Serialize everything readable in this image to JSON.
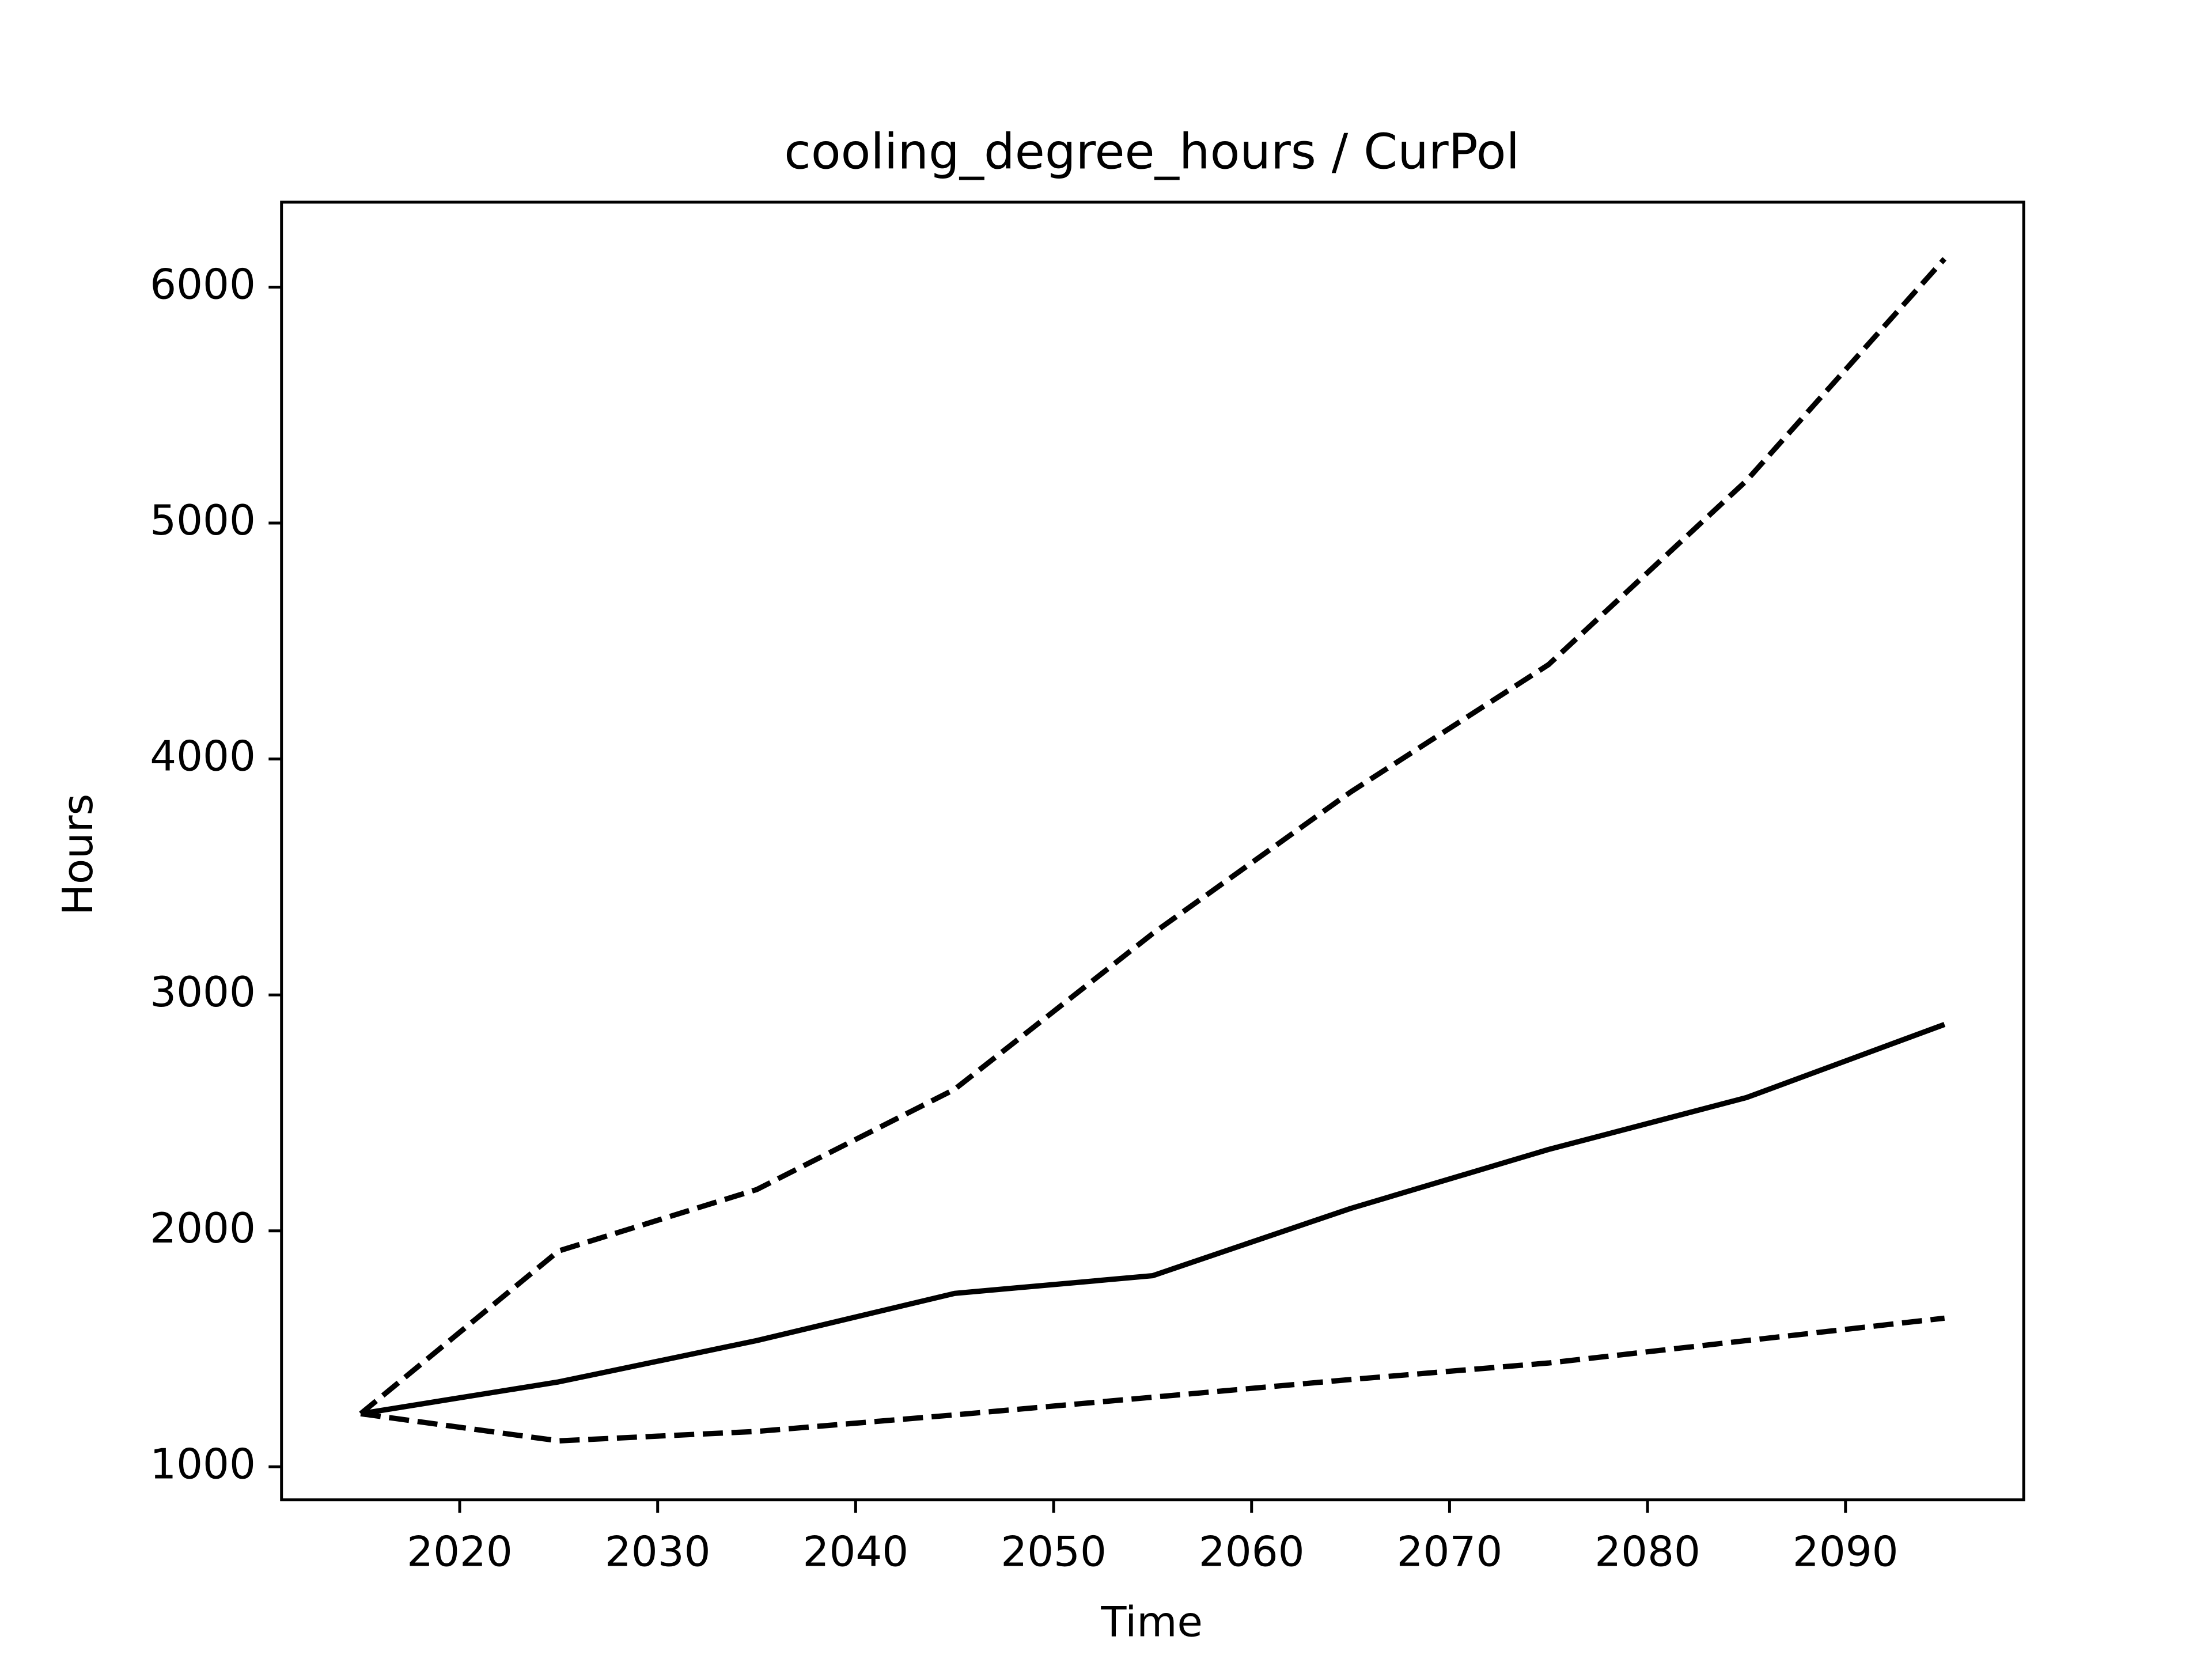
{
  "chart_data": {
    "type": "line",
    "title": "cooling_degree_hours / CurPol",
    "x_label": "Time",
    "y_label": "Hours",
    "x": [
      2015,
      2025,
      2035,
      2045,
      2055,
      2065,
      2075,
      2085,
      2095
    ],
    "series": [
      {
        "color": "#000000",
        "linestyle": "solid",
        "values": [
          1225,
          1360,
          1535,
          1735,
          1810,
          2095,
          2345,
          2565,
          2875
        ]
      },
      {
        "color": "#000000",
        "linestyle": "dashed",
        "values": [
          1225,
          1915,
          2175,
          2600,
          3260,
          3860,
          4400,
          5180,
          6120
        ]
      },
      {
        "color": "#000000",
        "linestyle": "dashed",
        "values": [
          1225,
          1110,
          1150,
          1220,
          1295,
          1370,
          1440,
          1535,
          1630
        ]
      }
    ],
    "xlim": [
      2011,
      2099
    ],
    "xticks": [
      2020,
      2030,
      2040,
      2050,
      2060,
      2070,
      2080,
      2090
    ],
    "ylim": [
      860,
      6360
    ],
    "yticks": [
      1000,
      2000,
      3000,
      4000,
      5000,
      6000
    ],
    "grid": false
  }
}
